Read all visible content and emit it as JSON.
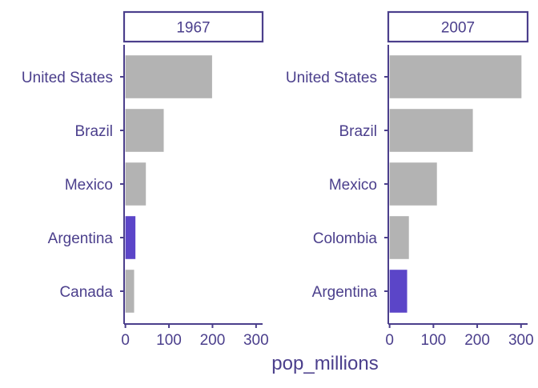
{
  "colors": {
    "text": "#4B3F8C",
    "axis": "#4B3F8C",
    "bar_default": "#B3B3B3",
    "bar_highlight": "#5B45C8",
    "background": "#FFFFFF"
  },
  "chart_data": [
    {
      "type": "bar",
      "orientation": "horizontal",
      "facet_label": "1967",
      "categories": [
        "United States",
        "Brazil",
        "Mexico",
        "Argentina",
        "Canada"
      ],
      "values": [
        199,
        88,
        47,
        23,
        20
      ],
      "highlight": "Argentina",
      "xlim": [
        -3,
        315
      ],
      "xticks": [
        0,
        100,
        200,
        300
      ],
      "xlabel": "",
      "ylabel": ""
    },
    {
      "type": "bar",
      "orientation": "horizontal",
      "facet_label": "2007",
      "categories": [
        "United States",
        "Brazil",
        "Mexico",
        "Colombia",
        "Argentina"
      ],
      "values": [
        301,
        190,
        108,
        44,
        40
      ],
      "highlight": "Argentina",
      "xlim": [
        -3,
        315
      ],
      "xticks": [
        0,
        100,
        200,
        300
      ],
      "xlabel": "",
      "ylabel": ""
    }
  ],
  "shared_xlabel": "pop_millions"
}
